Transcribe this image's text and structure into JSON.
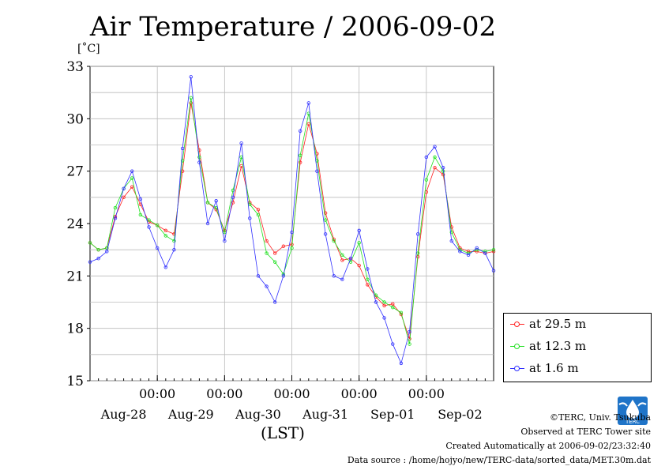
{
  "title": "Air Temperature / 2006-09-02",
  "y_unit": "[˚C]",
  "x_unit": "(LST)",
  "legend": [
    {
      "label": "at 29.5 m",
      "color": "#ff2020"
    },
    {
      "label": "at 12.3 m",
      "color": "#20e020"
    },
    {
      "label": "at 1.6 m",
      "color": "#3030ff"
    }
  ],
  "footer": {
    "copyright": "©TERC, Univ. Tsukuba",
    "observed": "Observed at TERC Tower site",
    "created": "Created Automatically at 2006-09-02/23:32:40",
    "source": "Data source : /home/hojyo/new/TERC-data/sorted_data/MET.30m.dat"
  },
  "logo_text": "TERC",
  "chart_data": {
    "type": "line",
    "ylim": [
      15,
      33
    ],
    "yticks": [
      15,
      18,
      21,
      24,
      27,
      30,
      33
    ],
    "x_range_hours": [
      0,
      144
    ],
    "xtick_time_label": "00:00",
    "x_day_labels": [
      "Aug-28",
      "Aug-29",
      "Aug-30",
      "Aug-31",
      "Sep-01",
      "Sep-02"
    ],
    "grid": true,
    "legend_position": "right",
    "series": [
      {
        "name": "at 29.5 m",
        "color": "#ff2020",
        "x": [
          0,
          3,
          6,
          9,
          12,
          15,
          18,
          21,
          24,
          27,
          30,
          33,
          36,
          39,
          42,
          45,
          48,
          51,
          54,
          57,
          60,
          63,
          66,
          69,
          72,
          75,
          78,
          81,
          84,
          87,
          90,
          93,
          96,
          99,
          102,
          105,
          108,
          111,
          114,
          117,
          120,
          123,
          126,
          129,
          132,
          135,
          138,
          141,
          144
        ],
        "values": [
          22.9,
          22.5,
          22.6,
          24.4,
          25.5,
          26.1,
          25.1,
          24.1,
          23.9,
          23.6,
          23.4,
          27.0,
          30.9,
          28.2,
          25.2,
          24.8,
          23.6,
          25.2,
          27.3,
          25.2,
          24.8,
          23.0,
          22.3,
          22.7,
          22.8,
          27.5,
          29.7,
          28.0,
          24.6,
          23.1,
          21.9,
          22.0,
          21.6,
          20.5,
          19.8,
          19.3,
          19.4,
          18.8,
          17.4,
          22.1,
          25.8,
          27.2,
          26.8,
          23.8,
          22.6,
          22.4,
          22.4,
          22.3,
          22.4
        ]
      },
      {
        "name": "at 12.3 m",
        "color": "#20e020",
        "x": [
          0,
          3,
          6,
          9,
          12,
          15,
          18,
          21,
          24,
          27,
          30,
          33,
          36,
          39,
          42,
          45,
          48,
          51,
          54,
          57,
          60,
          63,
          66,
          69,
          72,
          75,
          78,
          81,
          84,
          87,
          90,
          93,
          96,
          99,
          102,
          105,
          108,
          111,
          114,
          117,
          120,
          123,
          126,
          129,
          132,
          135,
          138,
          141,
          144
        ],
        "values": [
          22.9,
          22.5,
          22.6,
          24.9,
          26.0,
          26.6,
          24.5,
          24.2,
          23.9,
          23.3,
          23.0,
          27.6,
          31.2,
          27.8,
          25.2,
          24.9,
          23.5,
          25.9,
          27.8,
          25.1,
          24.5,
          22.3,
          21.8,
          21.1,
          22.6,
          27.9,
          30.3,
          27.6,
          24.2,
          23.0,
          22.2,
          21.8,
          22.9,
          20.8,
          19.9,
          19.5,
          19.2,
          18.9,
          17.1,
          22.3,
          26.5,
          27.8,
          27.0,
          23.5,
          22.5,
          22.3,
          22.5,
          22.4,
          22.5
        ]
      },
      {
        "name": "at 1.6 m",
        "color": "#3030ff",
        "x": [
          0,
          3,
          6,
          9,
          12,
          15,
          18,
          21,
          24,
          27,
          30,
          33,
          36,
          39,
          42,
          45,
          48,
          51,
          54,
          57,
          60,
          63,
          66,
          69,
          72,
          75,
          78,
          81,
          84,
          87,
          90,
          93,
          96,
          99,
          102,
          105,
          108,
          111,
          114,
          117,
          120,
          123,
          126,
          129,
          132,
          135,
          138,
          141,
          144
        ],
        "values": [
          21.8,
          22.0,
          22.4,
          24.3,
          26.0,
          27.0,
          25.4,
          23.8,
          22.6,
          21.5,
          22.5,
          28.3,
          32.4,
          27.5,
          24.0,
          25.3,
          23.0,
          25.5,
          28.6,
          24.3,
          21.0,
          20.4,
          19.5,
          21.0,
          23.5,
          29.3,
          30.9,
          27.0,
          23.4,
          21.0,
          20.8,
          22.0,
          23.6,
          21.4,
          19.5,
          18.6,
          17.1,
          16.0,
          17.8,
          23.4,
          27.8,
          28.4,
          27.2,
          23.0,
          22.4,
          22.2,
          22.6,
          22.3,
          21.3
        ]
      }
    ]
  }
}
